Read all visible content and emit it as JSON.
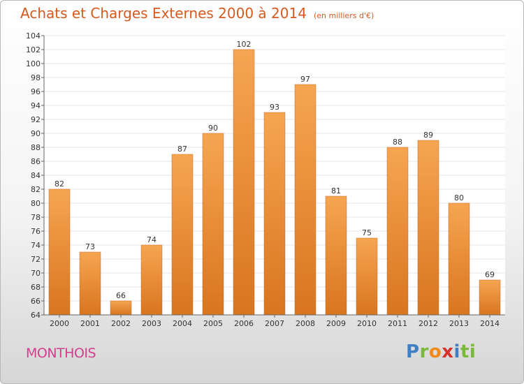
{
  "title": "Achats et Charges Externes 2000 à 2014",
  "unit_note": "(en milliers d'€)",
  "town": "MONTHOIS",
  "logo": {
    "letters": [
      "P",
      "r",
      "o",
      "x",
      "i",
      "ti"
    ]
  },
  "colors": {
    "bar_light": "#f6a552",
    "bar_dark": "#d9751f",
    "title": "#d65a1e",
    "town": "#d43d8e",
    "grid": "#e6e6e6",
    "axis": "#666666"
  },
  "chart_data": {
    "type": "bar",
    "categories": [
      "2000",
      "2001",
      "2002",
      "2003",
      "2004",
      "2005",
      "2006",
      "2007",
      "2008",
      "2009",
      "2010",
      "2011",
      "2012",
      "2013",
      "2014"
    ],
    "values": [
      82,
      73,
      66,
      74,
      87,
      90,
      102,
      93,
      97,
      81,
      75,
      88,
      89,
      80,
      69
    ],
    "ylim": [
      64,
      104
    ],
    "ytick_step": 2,
    "grid": true,
    "title": "Achats et Charges Externes 2000 à 2014",
    "xlabel": "",
    "ylabel": ""
  }
}
